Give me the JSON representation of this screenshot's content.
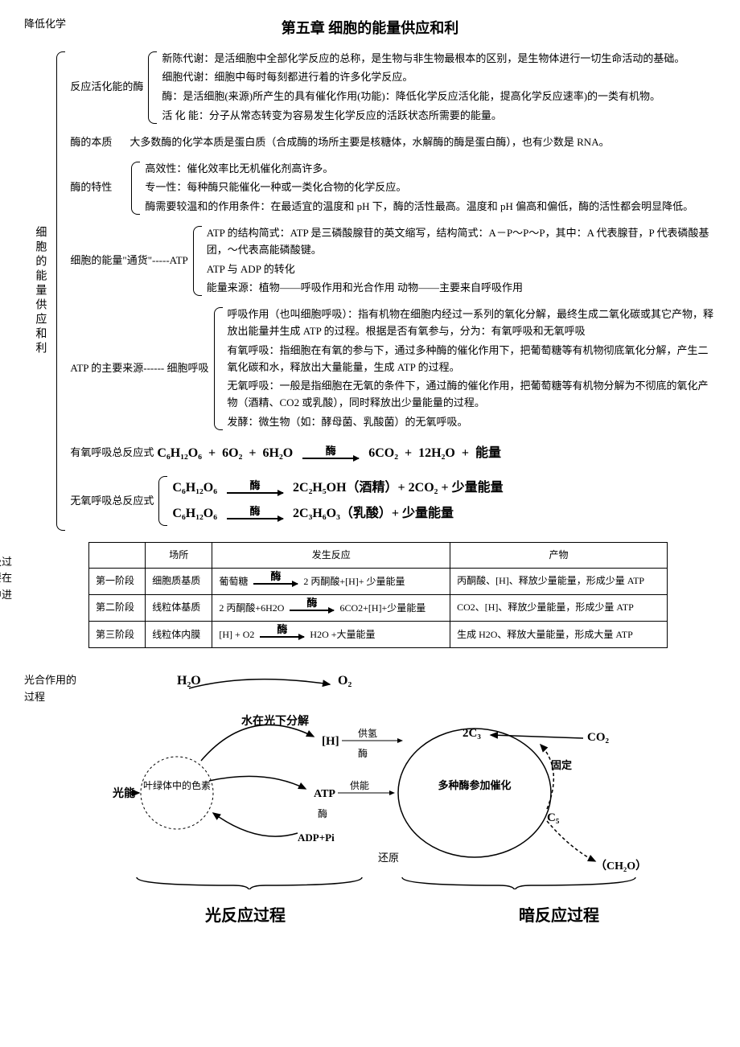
{
  "chapter_title": "第五章  细胞的能量供应和利",
  "pre_label": "降低化学",
  "root_label": "细胞的能量供应和利",
  "sections": {
    "enzyme_intro": {
      "label": "反应活化能的酶",
      "lines": [
        "新陈代谢：是活细胞中全部化学反应的总称，是生物与非生物最根本的区别，是生物体进行一切生命活动的基础。",
        "细胞代谢：细胞中每时每刻都进行着的许多化学反应。",
        "酶：是活细胞(来源)所产生的具有催化作用(功能)：降低化学反应活化能，提高化学反应速率)的一类有机物。",
        "活 化 能：分子从常态转变为容易发生化学反应的活跃状态所需要的能量。"
      ]
    },
    "enzyme_nature": {
      "label": "酶的本质",
      "text": "大多数酶的化学本质是蛋白质（合成酶的场所主要是核糖体，水解酶的酶是蛋白酶），也有少数是 RNA。"
    },
    "enzyme_props": {
      "label": "酶的特性",
      "lines": [
        "高效性：催化效率比无机催化剂高许多。",
        "专一性：每种酶只能催化一种或一类化合物的化学反应。",
        "酶需要较温和的作用条件：在最适宜的温度和 pH 下，酶的活性最高。温度和 pH 偏高和偏低，酶的活性都会明显降低。"
      ]
    },
    "atp": {
      "label": "细胞的能量\"通货\"-----ATP",
      "lines": [
        "ATP 的结构简式：ATP 是三磷酸腺苷的英文缩写，结构简式：A－P～P～P，其中：A 代表腺苷，P 代表磷酸基团，～代表高能磷酸键。",
        "ATP 与 ADP 的转化",
        "能量来源：植物——呼吸作用和光合作用      动物——主要来自呼吸作用"
      ]
    },
    "resp": {
      "label": "ATP 的主要来源------ 细胞呼吸",
      "lines": [
        "呼吸作用（也叫细胞呼吸）：指有机物在细胞内经过一系列的氧化分解，最终生成二氧化碳或其它产物，释放出能量并生成 ATP 的过程。根据是否有氧参与，分为：有氧呼吸和无氧呼吸",
        "有氧呼吸：指细胞在有氧的参与下，通过多种酶的催化作用下，把葡萄糖等有机物彻底氧化分解，产生二氧化碳和水，释放出大量能量，生成 ATP 的过程。",
        "无氧呼吸：一般是指细胞在无氧的条件下，通过酶的催化作用，把葡萄糖等有机物分解为不彻底的氧化产物（酒精、CO2 或乳酸），同时释放出少量能量的过程。",
        "发酵：微生物（如：酵母菌、乳酸菌）的无氧呼吸。"
      ]
    },
    "eq_aerobic_label": "有氧呼吸总反应式",
    "eq_anaerobic_label": "无氧呼吸总反应式",
    "eq1": {
      "r": "C₆H₁₂O₆",
      "p1": "6O₂",
      "p2": "6H₂O",
      "arrow": "酶",
      "o1": "6CO₂",
      "o2": "12H₂O",
      "o3": "能量"
    },
    "eq2": {
      "r": "C₆H₁₂O₆",
      "arrow": "酶",
      "o": "2C₂H₅OH（酒精）+ 2CO₂   +   少量能量"
    },
    "eq3": {
      "r": "C₆H₁₂O₆",
      "arrow": "酶",
      "o": "2C₃H₆O₃（乳酸）+  少量能量"
    }
  },
  "table": {
    "side_label": "有氧呼吸过程（主要在线粒体中进行）",
    "headers": [
      "",
      "场所",
      "发生反应",
      "产物"
    ],
    "rows": [
      {
        "stage": "第一阶段",
        "loc": "细胞质基质",
        "react_l": "葡萄糖",
        "react_r": "2 丙酮酸+[H]+ 少量能量",
        "prod": "丙酮酸、[H]、释放少量能量，形成少量 ATP"
      },
      {
        "stage": "第二阶段",
        "loc": "线粒体基质",
        "react_l": "2 丙酮酸+6H2O",
        "react_r": "6CO2+[H]+少量能量",
        "prod": "CO2、[H]、释放少量能量，形成少量 ATP"
      },
      {
        "stage": "第三阶段",
        "loc": "线粒体内膜",
        "react_l": "[H] + O2",
        "react_r": "H2O +大量能量",
        "prod": "生成 H2O、释放大量能量，形成大量 ATP"
      }
    ],
    "arrow_label": "酶"
  },
  "diagram": {
    "side_label": "光合作用的过程",
    "nodes": {
      "h2o": "H₂O",
      "o2": "O₂",
      "light": "光能",
      "chloro": "叶绿体中的色素",
      "split": "水在光下分解",
      "h": "[H]",
      "supply_h": "供氢",
      "enzyme": "酶",
      "atp": "ATP",
      "supply_e": "供能",
      "adp": "ADP+Pi",
      "reduce": "还原",
      "c3": "2C₃",
      "co2": "CO₂",
      "fix": "固定",
      "multi": "多种酶参加催化",
      "c5": "C₅",
      "ch2o": "（CH₂O）"
    },
    "phase_left": "光反应过程",
    "phase_right": "暗反应过程",
    "colors": {
      "line": "#000000",
      "dash": "#000000",
      "bg": "#ffffff"
    }
  }
}
